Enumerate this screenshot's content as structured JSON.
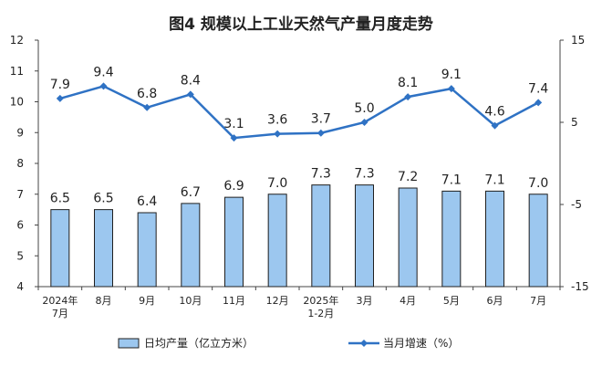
{
  "chart_data": {
    "type": "bar+line",
    "title": "图4  规模以上工业天然气产量月度走势",
    "categories": [
      [
        "2024年",
        "7月"
      ],
      [
        "8月"
      ],
      [
        "9月"
      ],
      [
        "10月"
      ],
      [
        "11月"
      ],
      [
        "12月"
      ],
      [
        "2025年",
        "1-2月"
      ],
      [
        "3月"
      ],
      [
        "4月"
      ],
      [
        "5月"
      ],
      [
        "6月"
      ],
      [
        "7月"
      ]
    ],
    "series": [
      {
        "name": "日均产量（亿立方米）",
        "type": "bar",
        "axis": "left",
        "values": [
          6.5,
          6.5,
          6.4,
          6.7,
          6.9,
          7.0,
          7.3,
          7.3,
          7.2,
          7.1,
          7.1,
          7.0
        ],
        "color": "#9cc7ef",
        "stroke": "#1f1f1f"
      },
      {
        "name": "当月增速（%）",
        "type": "line",
        "axis": "right",
        "values": [
          7.9,
          9.4,
          6.8,
          8.4,
          3.1,
          3.6,
          3.7,
          5.0,
          8.1,
          9.1,
          4.6,
          7.4
        ],
        "color": "#2f72c4"
      }
    ],
    "y_left": {
      "min": 4,
      "max": 12,
      "ticks": [
        4,
        5,
        6,
        7,
        8,
        9,
        10,
        11,
        12
      ]
    },
    "y_right": {
      "min": -15,
      "max": 15,
      "ticks": [
        -15,
        -5,
        5,
        15
      ]
    },
    "grid": false,
    "legend_position": "bottom"
  }
}
